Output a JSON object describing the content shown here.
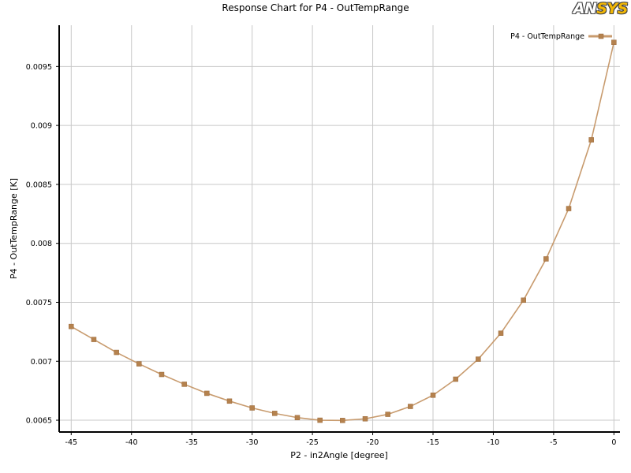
{
  "brand": {
    "logo_text_a": "AN",
    "logo_text_b": "SYS",
    "accent_color": "#f2b705"
  },
  "chart_data": {
    "type": "line",
    "title": "Response Chart for P4 - OutTempRange",
    "xlabel": "P2 - in2Angle  [degree]",
    "ylabel": "P4 - OutTempRange  [K]",
    "xlim": [
      -46,
      0.5
    ],
    "ylim": [
      0.0064,
      0.00985
    ],
    "x_ticks": [
      -45,
      -40,
      -35,
      -30,
      -25,
      -20,
      -15,
      -10,
      -5,
      0
    ],
    "x_tick_labels": [
      "-45",
      "-40",
      "-35",
      "-30",
      "-25",
      "-20",
      "-15",
      "-10",
      "-5",
      "0"
    ],
    "y_ticks": [
      0.0065,
      0.007,
      0.0075,
      0.008,
      0.0085,
      0.009,
      0.0095
    ],
    "y_tick_labels": [
      "0.0065",
      "0.007",
      "0.0075",
      "0.008",
      "0.0085",
      "0.009",
      "0.0095"
    ],
    "grid": true,
    "legend_position": "top-right",
    "series": [
      {
        "name": "P4 - OutTempRange",
        "color": "#c89b6e",
        "marker_color": "#b5824e",
        "x": [
          -45,
          -43.125,
          -41.25,
          -39.375,
          -37.5,
          -35.625,
          -33.75,
          -31.875,
          -30,
          -28.125,
          -26.25,
          -24.375,
          -22.5,
          -20.625,
          -18.75,
          -16.875,
          -15,
          -13.125,
          -11.25,
          -9.375,
          -7.5,
          -5.625,
          -3.75,
          -1.875,
          0
        ],
        "y": [
          0.007295,
          0.007185,
          0.007075,
          0.006978,
          0.006888,
          0.006805,
          0.006728,
          0.006662,
          0.006604,
          0.006558,
          0.006522,
          0.0065,
          0.006498,
          0.006512,
          0.00655,
          0.006617,
          0.006712,
          0.006848,
          0.007018,
          0.007238,
          0.007518,
          0.007868,
          0.008295,
          0.008878,
          0.009705
        ]
      }
    ]
  }
}
